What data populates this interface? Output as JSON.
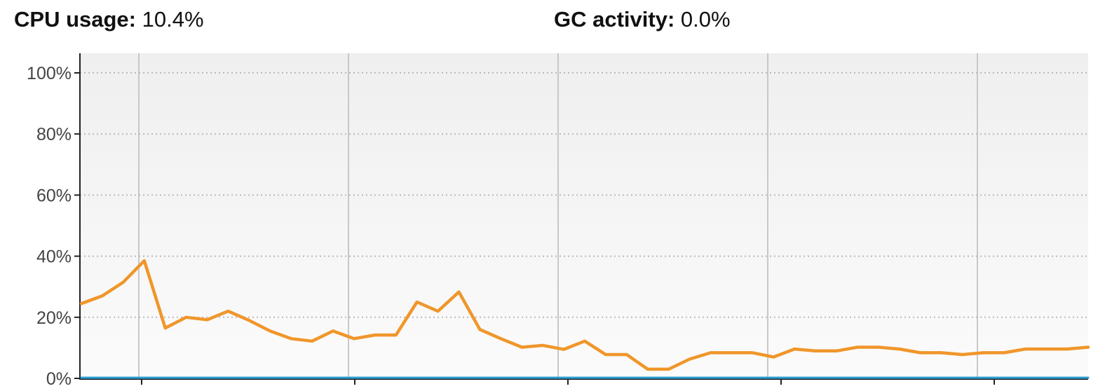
{
  "header": {
    "cpu_label": "CPU usage:",
    "cpu_value": "10.4%",
    "gc_label": "GC activity:",
    "gc_value": "0.0%"
  },
  "colors": {
    "cpu_line": "#f0962a",
    "gc_line": "#2a9fd6",
    "grid": "#c8c8c8",
    "axis": "#222222",
    "plot_bg_top": "#efefef",
    "plot_bg_bottom": "#fbfbfb"
  },
  "chart_data": {
    "type": "line",
    "title": "",
    "xlabel": "",
    "ylabel": "",
    "ylim": [
      0,
      100
    ],
    "y_ticks": [
      "100%",
      "80%",
      "60%",
      "40%",
      "20%",
      "0%"
    ],
    "y_tick_values": [
      100,
      80,
      60,
      40,
      20,
      0
    ],
    "grid": true,
    "x_tick_count": 5,
    "series": [
      {
        "color": "#f0962a",
        "values": [
          24.5,
          27,
          31.5,
          38.5,
          16.5,
          20,
          19.2,
          22,
          19,
          15.5,
          13,
          12.2,
          15.5,
          13,
          14.2,
          14.2,
          25,
          22,
          28.3,
          16,
          13,
          10.2,
          10.8,
          9.5,
          12.2,
          7.8,
          7.8,
          3,
          3,
          6.3,
          8.4,
          8.4,
          8.4,
          7,
          9.6,
          9,
          9,
          10.2,
          10.2,
          9.6,
          8.4,
          8.4,
          7.8,
          8.4,
          8.4,
          9.6,
          9.6,
          9.6,
          10.2
        ]
      },
      {
        "color": "#2a9fd6",
        "values": [
          0,
          0,
          0,
          0,
          0,
          0,
          0,
          0,
          0,
          0,
          0,
          0,
          0,
          0,
          0,
          0,
          0,
          0,
          0,
          0,
          0,
          0,
          0,
          0,
          0,
          0,
          0,
          0,
          0,
          0,
          0,
          0,
          0,
          0,
          0,
          0,
          0,
          0,
          0,
          0,
          0,
          0,
          0,
          0,
          0,
          0,
          0,
          0,
          0
        ]
      }
    ]
  }
}
